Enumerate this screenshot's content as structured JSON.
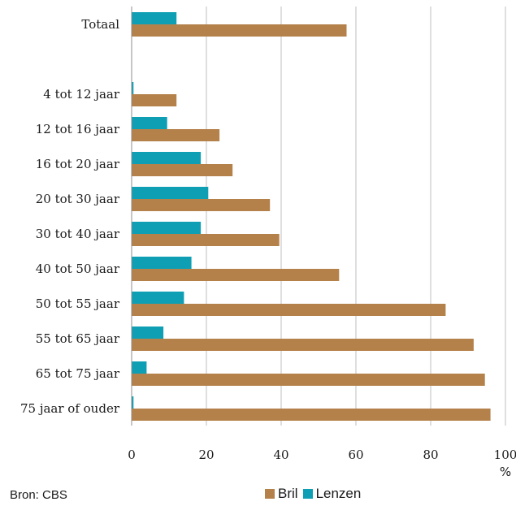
{
  "chart_data": {
    "type": "bar",
    "orientation": "horizontal",
    "categories": [
      "Totaal",
      "",
      "4 tot 12 jaar",
      "12 tot 16 jaar",
      "16 tot 20 jaar",
      "20 tot 30 jaar",
      "30 tot 40 jaar",
      "40 tot 50 jaar",
      "50 tot 55 jaar",
      "55 tot 65 jaar",
      "65 tot 75 jaar",
      "75 jaar of ouder"
    ],
    "series": [
      {
        "name": "Lenzen",
        "color": "#0f9fb4",
        "values": [
          12,
          null,
          0.5,
          9.5,
          18.5,
          20.5,
          18.5,
          16,
          14,
          8.5,
          4,
          0.5
        ]
      },
      {
        "name": "Bril",
        "color": "#b5814a",
        "values": [
          57.5,
          null,
          12,
          23.5,
          27,
          37,
          39.5,
          55.5,
          84,
          91.5,
          94.5,
          96
        ]
      }
    ],
    "xlim": [
      0,
      100
    ],
    "xticks": [
      "0",
      "20",
      "40",
      "60",
      "80",
      "100"
    ],
    "xunit": "%",
    "grid": "vertical",
    "legend_position": "bottom"
  },
  "source": "Bron: CBS",
  "legend": [
    {
      "label": "Bril",
      "color": "#b5814a"
    },
    {
      "label": "Lenzen",
      "color": "#0f9fb4"
    }
  ]
}
